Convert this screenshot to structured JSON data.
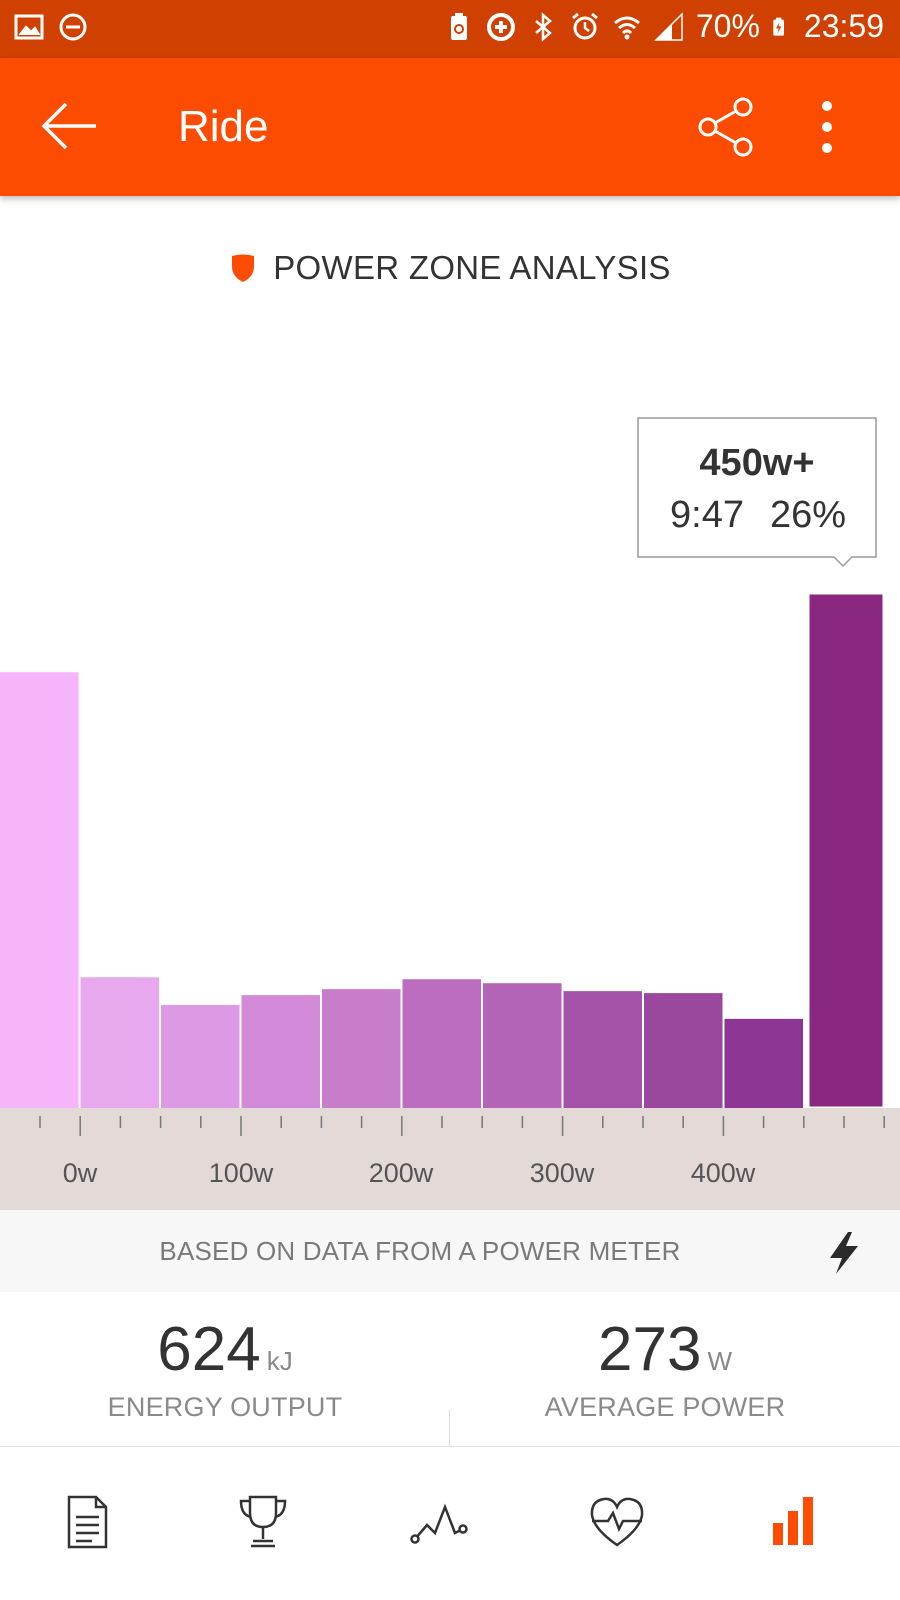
{
  "status_bar": {
    "battery": "70%",
    "time": "23:59",
    "icons_left": [
      "image-icon",
      "do-not-disturb-icon"
    ],
    "icons_right": [
      "battery-saver-icon",
      "sync-icon",
      "bluetooth-icon",
      "alarm-icon",
      "wifi-icon",
      "signal-icon",
      "battery-icon"
    ]
  },
  "app_bar": {
    "title": "Ride",
    "colors": {
      "background": "#fc4c02",
      "status": "#d04000"
    }
  },
  "section": {
    "title": "POWER ZONE ANALYSIS"
  },
  "tooltip": {
    "zone": "450w+",
    "time": "9:47",
    "percent": "26%"
  },
  "chart_data": {
    "type": "bar",
    "categories": [
      "<0w",
      "0w",
      "50w",
      "100w",
      "150w",
      "200w",
      "250w",
      "300w",
      "350w",
      "400w",
      "450w+"
    ],
    "values": [
      22,
      6.6,
      5.2,
      5.7,
      6.0,
      6.5,
      6.3,
      5.9,
      5.8,
      4.5,
      26
    ],
    "tick_labels": [
      "0w",
      "100w",
      "200w",
      "300w",
      "400w"
    ],
    "colors": [
      "#f6b5fa",
      "#e8a8ee",
      "#dc99e4",
      "#d38ad8",
      "#c87dcb",
      "#bd6dc0",
      "#b364b6",
      "#a453a8",
      "#9a479e",
      "#8c3592",
      "#8a2780"
    ],
    "selected_index": 10,
    "selected_outline": "#ffffff"
  },
  "meter": {
    "text": "BASED ON DATA FROM A POWER METER"
  },
  "stats": [
    {
      "value": "624",
      "unit": "kJ",
      "label": "ENERGY OUTPUT"
    },
    {
      "value": "273",
      "unit": "W",
      "label": "AVERAGE POWER"
    }
  ],
  "bottom_nav": {
    "items": [
      "overview-icon",
      "achievements-icon",
      "analysis-icon",
      "heart-rate-icon",
      "power-icon"
    ],
    "active_index": 4,
    "active_color": "#fc4c02"
  }
}
